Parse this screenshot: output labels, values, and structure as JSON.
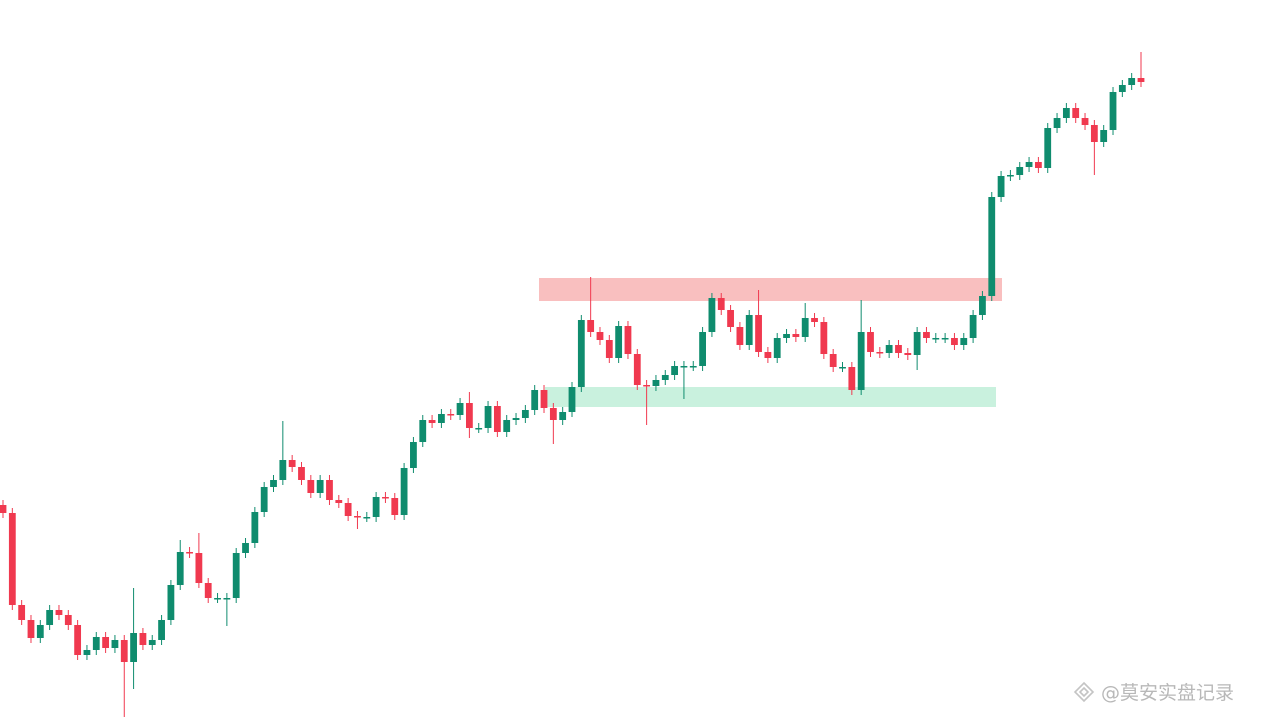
{
  "chart_data": {
    "type": "candlestick",
    "watermark": "@莫安实盘记录",
    "ylim": [
      0,
      719
    ],
    "up_color": "#0f8c6e",
    "down_color": "#f0394f",
    "open": [
      214,
      206,
      114,
      99,
      81,
      94,
      109,
      104,
      94,
      64,
      69,
      82,
      71,
      79,
      57,
      86,
      74,
      79,
      99,
      134,
      167,
      166,
      136,
      121,
      121,
      121,
      166,
      176,
      207,
      232,
      239,
      259,
      252,
      239,
      226,
      239,
      219,
      216,
      203,
      202,
      202,
      222,
      221,
      204,
      251,
      277,
      299,
      296,
      305,
      304,
      316,
      291,
      291,
      313,
      287,
      299,
      301,
      309,
      329,
      311,
      299,
      307,
      332,
      399,
      387,
      379,
      361,
      393,
      365,
      334,
      333,
      339,
      344,
      353,
      353,
      353,
      387,
      421,
      409,
      392,
      374,
      404,
      367,
      361,
      381,
      385,
      382,
      401,
      397,
      365,
      352,
      352,
      329,
      387,
      367,
      366,
      374,
      366,
      364,
      387,
      381,
      381,
      381,
      374,
      381,
      404,
      423,
      522,
      543,
      544,
      552,
      557,
      551,
      591,
      601,
      611,
      601,
      594,
      577,
      589,
      627,
      634,
      641
    ],
    "high": [
      219,
      211,
      119,
      104,
      99,
      114,
      114,
      109,
      99,
      74,
      87,
      87,
      84,
      84,
      131,
      91,
      84,
      104,
      139,
      179,
      172,
      186,
      141,
      126,
      126,
      171,
      181,
      212,
      237,
      244,
      298,
      264,
      257,
      244,
      244,
      244,
      224,
      221,
      208,
      207,
      227,
      227,
      226,
      256,
      282,
      304,
      304,
      310,
      310,
      321,
      327,
      296,
      318,
      318,
      304,
      306,
      314,
      334,
      334,
      316,
      312,
      337,
      404,
      442,
      392,
      384,
      398,
      398,
      370,
      339,
      344,
      349,
      358,
      358,
      358,
      392,
      426,
      426,
      414,
      397,
      409,
      429,
      372,
      386,
      390,
      390,
      416,
      406,
      402,
      370,
      357,
      357,
      419,
      392,
      372,
      379,
      379,
      371,
      392,
      392,
      386,
      386,
      386,
      386,
      409,
      428,
      527,
      548,
      549,
      557,
      562,
      562,
      596,
      606,
      616,
      616,
      606,
      599,
      594,
      632,
      639,
      646,
      667
    ],
    "low": [
      201,
      109,
      94,
      76,
      76,
      89,
      99,
      89,
      59,
      59,
      64,
      66,
      66,
      2,
      30,
      69,
      69,
      74,
      94,
      129,
      161,
      131,
      116,
      116,
      93,
      116,
      161,
      171,
      202,
      227,
      234,
      247,
      234,
      221,
      221,
      214,
      211,
      198,
      190,
      197,
      197,
      216,
      199,
      199,
      246,
      272,
      291,
      291,
      299,
      299,
      281,
      286,
      286,
      282,
      282,
      294,
      296,
      304,
      306,
      275,
      294,
      302,
      327,
      382,
      374,
      356,
      356,
      360,
      329,
      294,
      328,
      334,
      339,
      320,
      348,
      348,
      382,
      404,
      387,
      369,
      369,
      362,
      356,
      356,
      376,
      377,
      377,
      392,
      360,
      347,
      347,
      324,
      324,
      362,
      361,
      361,
      361,
      359,
      349,
      376,
      376,
      376,
      369,
      369,
      376,
      399,
      418,
      517,
      538,
      539,
      547,
      546,
      546,
      586,
      596,
      596,
      589,
      544,
      572,
      584,
      622,
      629,
      632
    ],
    "close": [
      206,
      114,
      99,
      81,
      94,
      109,
      104,
      94,
      64,
      69,
      82,
      71,
      79,
      57,
      86,
      74,
      79,
      99,
      134,
      167,
      166,
      136,
      121,
      121,
      121,
      166,
      176,
      207,
      232,
      239,
      259,
      252,
      239,
      226,
      239,
      219,
      216,
      203,
      202,
      202,
      222,
      221,
      204,
      251,
      277,
      299,
      296,
      305,
      304,
      316,
      291,
      291,
      313,
      287,
      299,
      301,
      309,
      329,
      311,
      299,
      307,
      332,
      399,
      387,
      379,
      361,
      393,
      365,
      334,
      333,
      339,
      344,
      353,
      353,
      353,
      387,
      421,
      409,
      392,
      374,
      404,
      367,
      361,
      381,
      385,
      382,
      401,
      397,
      365,
      352,
      352,
      329,
      387,
      367,
      366,
      374,
      366,
      364,
      387,
      381,
      381,
      381,
      374,
      381,
      404,
      423,
      522,
      543,
      544,
      552,
      557,
      551,
      591,
      601,
      611,
      601,
      594,
      577,
      589,
      627,
      634,
      641,
      637
    ],
    "zones": [
      {
        "low": 418,
        "high": 441,
        "color": "#f8b4b4"
      },
      {
        "low": 312,
        "high": 332,
        "color": "#bfeed8"
      }
    ]
  }
}
